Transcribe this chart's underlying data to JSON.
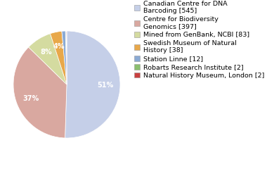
{
  "labels": [
    "Canadian Centre for DNA\nBarcoding [545]",
    "Centre for Biodiversity\nGenomics [397]",
    "Mined from GenBank, NCBI [83]",
    "Swedish Museum of Natural\nHistory [38]",
    "Station Linne [12]",
    "Robarts Research Institute [2]",
    "Natural History Museum, London [2]"
  ],
  "values": [
    545,
    397,
    83,
    38,
    12,
    2,
    2
  ],
  "colors": [
    "#c5cfe8",
    "#d9a8a0",
    "#d4dba0",
    "#e8a84a",
    "#8baad4",
    "#8bbf6e",
    "#c94040"
  ],
  "startangle": 90,
  "pctdistance": 0.72,
  "background_color": "#ffffff",
  "legend_fontsize": 6.8,
  "autopct_fontsize": 7.0,
  "pct_threshold": 2.0
}
